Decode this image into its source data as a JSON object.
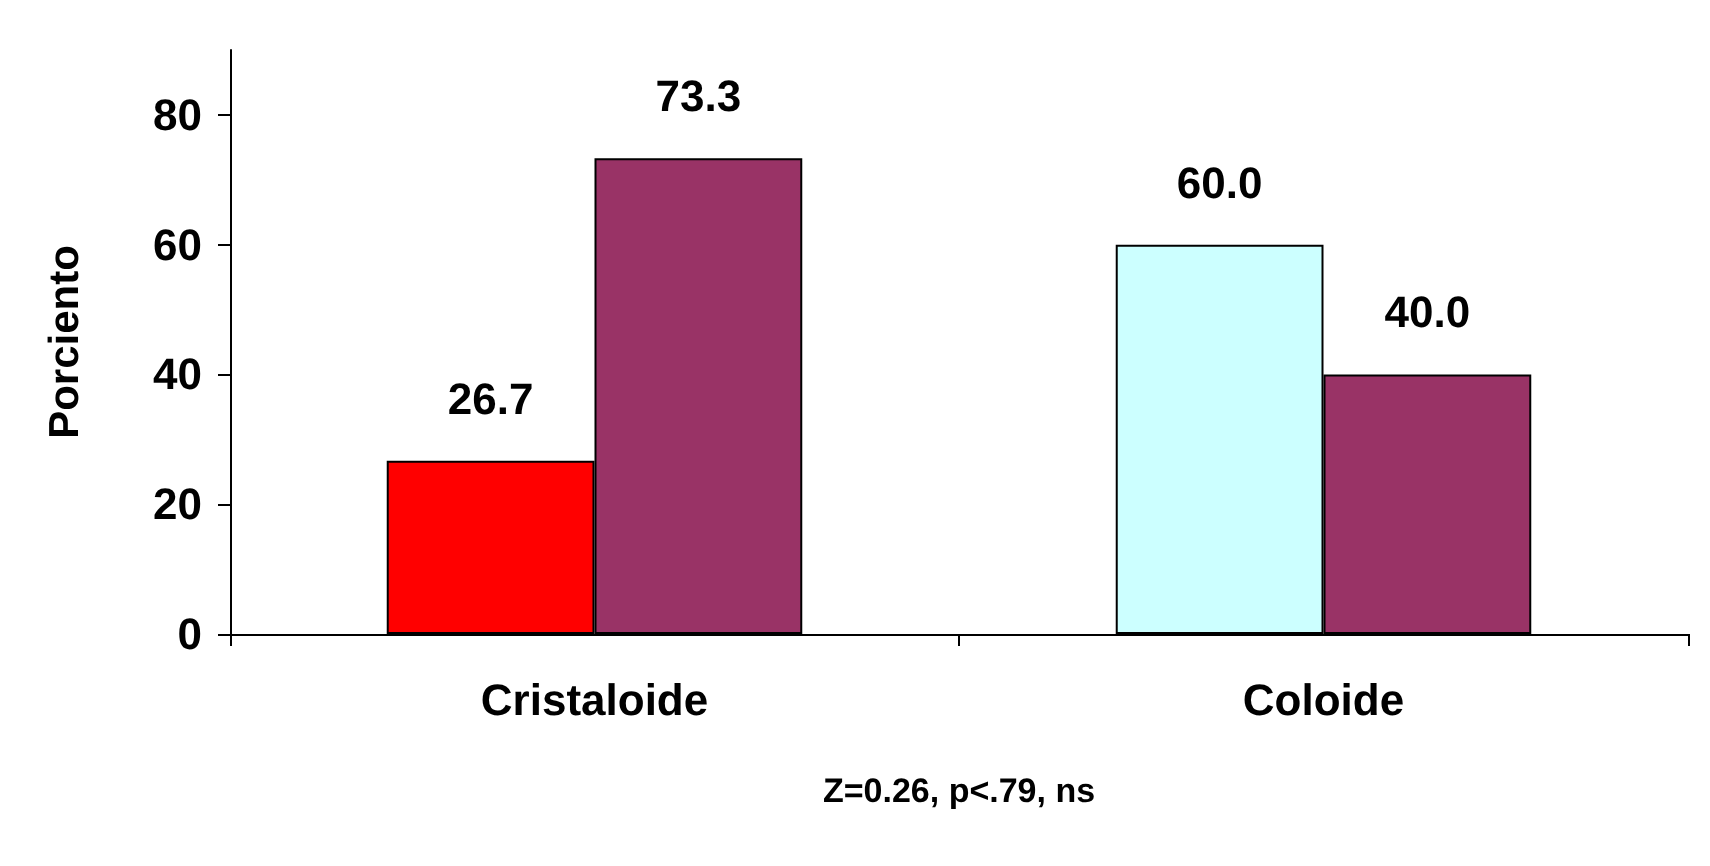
{
  "chart_data": {
    "type": "bar",
    "xlabel": "Z=0.26, p<.79, ns",
    "ylabel": "Porciento",
    "categories": [
      "Cristaloide",
      "Coloide"
    ],
    "series": [
      {
        "colors": [
          "#ff0000",
          "#ccffff"
        ],
        "values": [
          26.7,
          60.0
        ],
        "value_labels": [
          "26.7",
          "60.0"
        ]
      },
      {
        "color": "#993366",
        "values": [
          73.3,
          40.0
        ],
        "value_labels": [
          "73.3",
          "40.0"
        ]
      }
    ],
    "ylim": [
      0,
      90
    ],
    "yticks": [
      0,
      20,
      40,
      60,
      80
    ],
    "grid": false
  }
}
